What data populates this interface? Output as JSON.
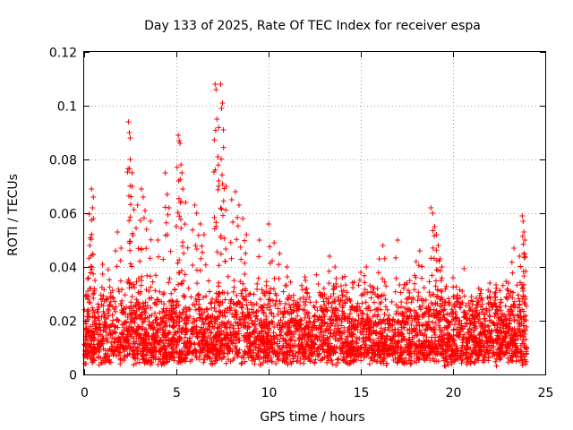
{
  "chart_data": {
    "type": "scatter",
    "title": "Day 133 of 2025, Rate Of TEC Index for receiver espa",
    "xlabel": "GPS time / hours",
    "ylabel": "ROTI / TECUs",
    "xlim": [
      0,
      25
    ],
    "ylim": [
      0,
      0.12
    ],
    "xticks": [
      0,
      5,
      10,
      15,
      20,
      25
    ],
    "xtick_labels": [
      "0",
      "5",
      "10",
      "15",
      "20",
      "25"
    ],
    "yticks": [
      0,
      0.02,
      0.04,
      0.06,
      0.08,
      0.1,
      0.12
    ],
    "ytick_labels": [
      "0",
      "0.02",
      "0.04",
      "0.06",
      "0.08",
      "0.1",
      "0.12"
    ],
    "grid": true,
    "marker": "+",
    "color": "#ff0000",
    "series": [
      {
        "name": "ROTI",
        "points": [
          [
            0.1,
            0.004
          ],
          [
            0.2,
            0.031
          ],
          [
            0.3,
            0.048
          ],
          [
            0.4,
            0.069
          ],
          [
            0.45,
            0.062
          ],
          [
            0.5,
            0.058
          ],
          [
            0.5,
            0.066
          ],
          [
            1.0,
            0.041
          ],
          [
            1.3,
            0.039
          ],
          [
            1.8,
            0.053
          ],
          [
            2.0,
            0.047
          ],
          [
            2.4,
            0.094
          ],
          [
            2.45,
            0.09
          ],
          [
            2.5,
            0.088
          ],
          [
            2.5,
            0.08
          ],
          [
            2.6,
            0.075
          ],
          [
            2.6,
            0.07
          ],
          [
            2.9,
            0.063
          ],
          [
            3.1,
            0.069
          ],
          [
            3.2,
            0.066
          ],
          [
            3.3,
            0.061
          ],
          [
            3.6,
            0.057
          ],
          [
            4.0,
            0.05
          ],
          [
            4.4,
            0.075
          ],
          [
            4.5,
            0.067
          ],
          [
            4.6,
            0.062
          ],
          [
            5.1,
            0.089
          ],
          [
            5.15,
            0.087
          ],
          [
            5.2,
            0.086
          ],
          [
            5.25,
            0.078
          ],
          [
            5.3,
            0.075
          ],
          [
            5.35,
            0.069
          ],
          [
            5.5,
            0.064
          ],
          [
            6.0,
            0.063
          ],
          [
            6.1,
            0.06
          ],
          [
            6.3,
            0.056
          ],
          [
            6.5,
            0.052
          ],
          [
            7.1,
            0.108
          ],
          [
            7.15,
            0.106
          ],
          [
            7.2,
            0.095
          ],
          [
            7.25,
            0.081
          ],
          [
            7.3,
            0.072
          ],
          [
            7.4,
            0.108
          ],
          [
            7.45,
            0.099
          ],
          [
            7.5,
            0.101
          ],
          [
            7.55,
            0.091
          ],
          [
            7.7,
            0.07
          ],
          [
            8.0,
            0.065
          ],
          [
            8.2,
            0.068
          ],
          [
            8.4,
            0.063
          ],
          [
            8.6,
            0.058
          ],
          [
            8.8,
            0.052
          ],
          [
            9.5,
            0.05
          ],
          [
            10.0,
            0.056
          ],
          [
            10.3,
            0.049
          ],
          [
            10.6,
            0.045
          ],
          [
            11.0,
            0.04
          ],
          [
            12.0,
            0.035
          ],
          [
            13.0,
            0.032
          ],
          [
            13.3,
            0.044
          ],
          [
            13.6,
            0.04
          ],
          [
            14.0,
            0.036
          ],
          [
            15.0,
            0.038
          ],
          [
            15.3,
            0.04
          ],
          [
            15.5,
            0.033
          ],
          [
            16.0,
            0.043
          ],
          [
            16.2,
            0.048
          ],
          [
            17.0,
            0.05
          ],
          [
            17.5,
            0.034
          ],
          [
            18.0,
            0.042
          ],
          [
            18.2,
            0.046
          ],
          [
            18.8,
            0.062
          ],
          [
            18.9,
            0.06
          ],
          [
            19.0,
            0.055
          ],
          [
            19.1,
            0.052
          ],
          [
            19.2,
            0.048
          ],
          [
            19.3,
            0.043
          ],
          [
            19.4,
            0.04
          ],
          [
            20.0,
            0.036
          ],
          [
            20.5,
            0.031
          ],
          [
            21.0,
            0.029
          ],
          [
            21.4,
            0.032
          ],
          [
            22.0,
            0.034
          ],
          [
            22.5,
            0.025
          ],
          [
            23.0,
            0.034
          ],
          [
            23.3,
            0.047
          ],
          [
            23.6,
            0.044
          ],
          [
            23.75,
            0.059
          ],
          [
            23.8,
            0.057
          ],
          [
            23.85,
            0.053
          ],
          [
            23.9,
            0.05
          ]
        ]
      }
    ],
    "background_band": {
      "description": "dense scatter of many points",
      "x_range": [
        0,
        24
      ],
      "y_min_range": [
        0.003,
        0.008
      ],
      "y_max_range": [
        0.018,
        0.035
      ]
    }
  }
}
